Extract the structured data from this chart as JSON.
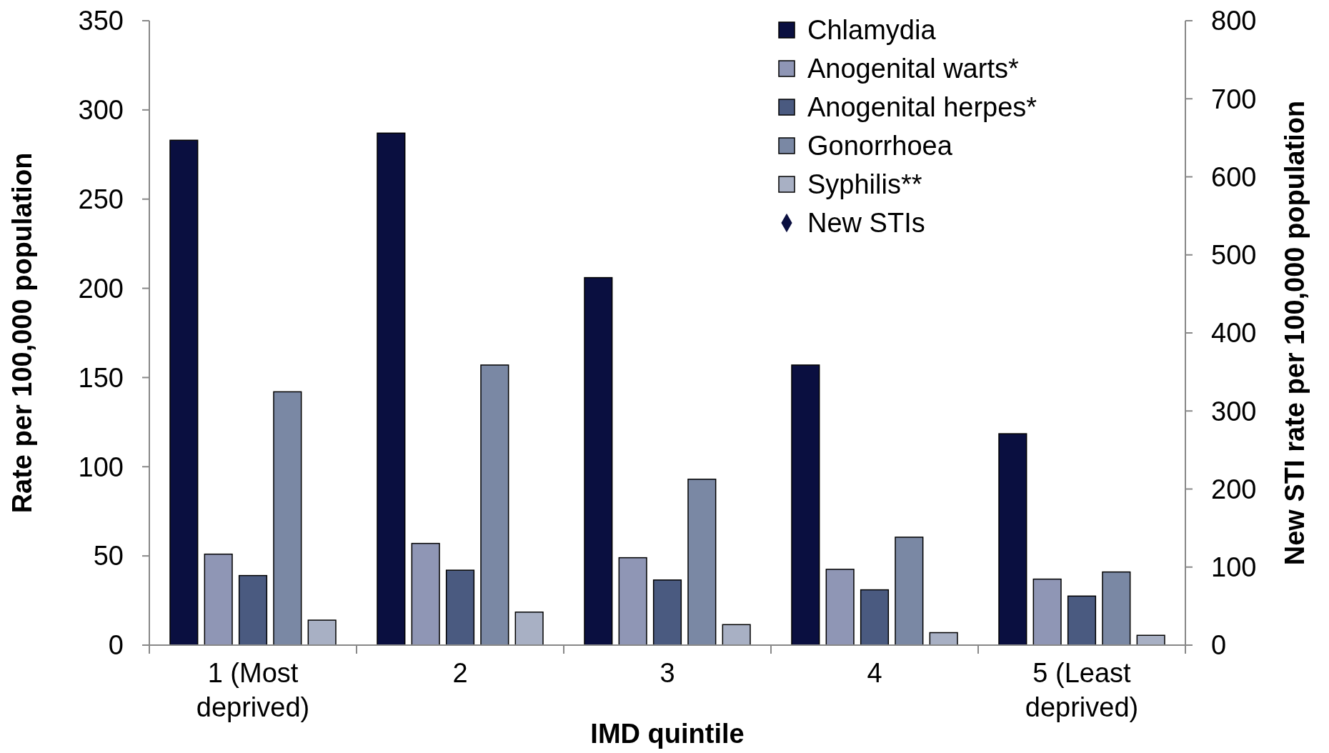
{
  "chart_data": {
    "type": "bar",
    "xlabel": "IMD quintile",
    "ylabel": "Rate per 100,000 population",
    "y2label": "New STI rate per 100,000 population",
    "categories": [
      "1 (Most deprived)",
      "2",
      "3",
      "4",
      "5 (Least deprived)"
    ],
    "series": [
      {
        "name": "Chlamydia",
        "color": "#0a0f40",
        "values": [
          283,
          287,
          206,
          157,
          118.5
        ]
      },
      {
        "name": "Anogenital warts*",
        "color": "#8f96b5",
        "values": [
          51,
          57,
          49,
          42.5,
          37
        ]
      },
      {
        "name": "Anogenital herpes*",
        "color": "#4a5a80",
        "values": [
          39,
          42,
          36.5,
          31,
          27.5
        ]
      },
      {
        "name": "Gonorrhoea",
        "color": "#7a88a4",
        "values": [
          142,
          157,
          93,
          60.5,
          41
        ]
      },
      {
        "name": "Syphilis**",
        "color": "#a8b0c4",
        "values": [
          14,
          18.5,
          11.5,
          7,
          5.5
        ]
      },
      {
        "name": "New STIs",
        "color": "#0a0f40",
        "type": "scatter",
        "marker": "diamond",
        "values": [
          null,
          null,
          null,
          null,
          null
        ]
      }
    ],
    "ylim": [
      0,
      350
    ],
    "yticks": [
      0,
      50,
      100,
      150,
      200,
      250,
      300,
      350
    ],
    "y2lim": [
      0,
      800
    ],
    "y2ticks": [
      0,
      100,
      200,
      300,
      400,
      500,
      600,
      700,
      800
    ],
    "legend": "top right",
    "grid": false
  }
}
